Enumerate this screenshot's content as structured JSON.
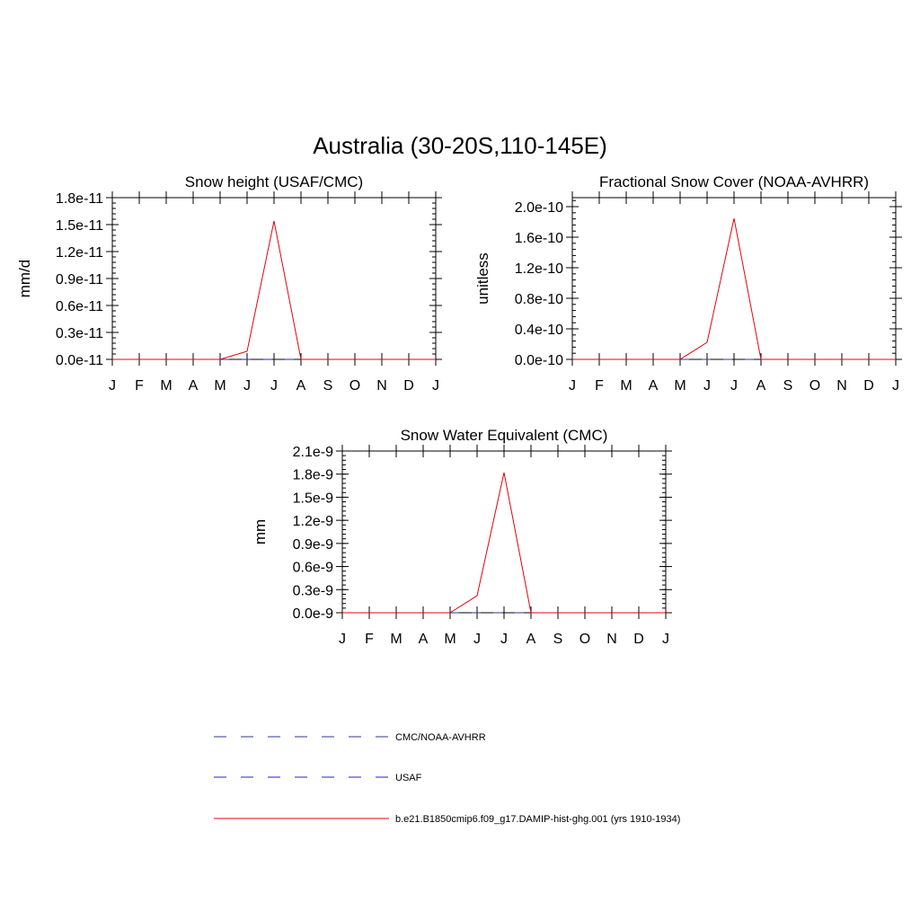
{
  "title": "Australia (30-20S,110-145E)",
  "chart_data": [
    {
      "type": "line",
      "title": "Snow height (USAF/CMC)",
      "xlabel": "",
      "ylabel": "mm/d",
      "categories": [
        "J",
        "F",
        "M",
        "A",
        "M",
        "J",
        "J",
        "A",
        "S",
        "O",
        "N",
        "D",
        "J"
      ],
      "yticks": [
        "0.0e-11",
        "0.3e-11",
        "0.6e-11",
        "0.9e-11",
        "1.2e-11",
        "1.5e-11",
        "1.8e-11"
      ],
      "ylim": [
        0,
        1.8e-11
      ],
      "series": [
        {
          "name": "CMC/NOAA-AVHRR",
          "color": "#333399",
          "dash": true,
          "values": [
            0,
            0,
            0,
            0,
            0,
            0,
            0,
            0,
            0,
            0,
            0,
            0,
            0
          ]
        },
        {
          "name": "USAF",
          "color": "#2222cc",
          "dash": true,
          "values": [
            0,
            0,
            0,
            0,
            0,
            0,
            0,
            0,
            0,
            0,
            0,
            0,
            0
          ]
        },
        {
          "name": "b.e21.B1850cmip6.f09_g17.DAMIP-hist-ghg.001 (yrs 1910-1934)",
          "color": "#e8000b",
          "dash": false,
          "values": [
            0,
            0,
            0,
            0,
            0,
            9e-13,
            1.54e-11,
            0,
            0,
            0,
            0,
            0,
            0
          ]
        }
      ]
    },
    {
      "type": "line",
      "title": "Fractional Snow Cover (NOAA-AVHRR)",
      "xlabel": "",
      "ylabel": "unitless",
      "categories": [
        "J",
        "F",
        "M",
        "A",
        "M",
        "J",
        "J",
        "A",
        "S",
        "O",
        "N",
        "D",
        "J"
      ],
      "yticks": [
        "0.0e-10",
        "0.4e-10",
        "0.8e-10",
        "1.2e-10",
        "1.6e-10",
        "2.0e-10"
      ],
      "ylim": [
        0,
        2.1e-10
      ],
      "series": [
        {
          "name": "CMC/NOAA-AVHRR",
          "color": "#333399",
          "dash": true,
          "values": [
            0,
            0,
            0,
            0,
            0,
            0,
            0,
            0,
            0,
            0,
            0,
            0,
            0
          ]
        },
        {
          "name": "b.e21.B1850cmip6.f09_g17.DAMIP-hist-ghg.001 (yrs 1910-1934)",
          "color": "#e8000b",
          "dash": false,
          "values": [
            0,
            0,
            0,
            0,
            0,
            2.2e-11,
            1.83e-10,
            0,
            0,
            0,
            0,
            0,
            0
          ]
        }
      ]
    },
    {
      "type": "line",
      "title": "Snow Water Equivalent (CMC)",
      "xlabel": "",
      "ylabel": "mm",
      "categories": [
        "J",
        "F",
        "M",
        "A",
        "M",
        "J",
        "J",
        "A",
        "S",
        "O",
        "N",
        "D",
        "J"
      ],
      "yticks": [
        "0.0e-9",
        "0.3e-9",
        "0.6e-9",
        "0.9e-9",
        "1.2e-9",
        "1.5e-9",
        "1.8e-9",
        "2.1e-9"
      ],
      "ylim": [
        0,
        2.1e-09
      ],
      "series": [
        {
          "name": "CMC/NOAA-AVHRR",
          "color": "#333399",
          "dash": true,
          "values": [
            0,
            0,
            0,
            0,
            0,
            0,
            0,
            0,
            0,
            0,
            0,
            0,
            0
          ]
        },
        {
          "name": "b.e21.B1850cmip6.f09_g17.DAMIP-hist-ghg.001 (yrs 1910-1934)",
          "color": "#e8000b",
          "dash": false,
          "values": [
            0,
            0,
            0,
            0,
            0,
            2.2e-10,
            1.82e-09,
            0,
            0,
            0,
            0,
            0,
            0
          ]
        }
      ]
    }
  ],
  "legend": [
    {
      "label": "CMC/NOAA-AVHRR",
      "color": "#333399",
      "dash": true
    },
    {
      "label": "USAF",
      "color": "#2222cc",
      "dash": true
    },
    {
      "label": "b.e21.B1850cmip6.f09_g17.DAMIP-hist-ghg.001 (yrs 1910-1934)",
      "color": "#e8000b",
      "dash": false
    }
  ]
}
